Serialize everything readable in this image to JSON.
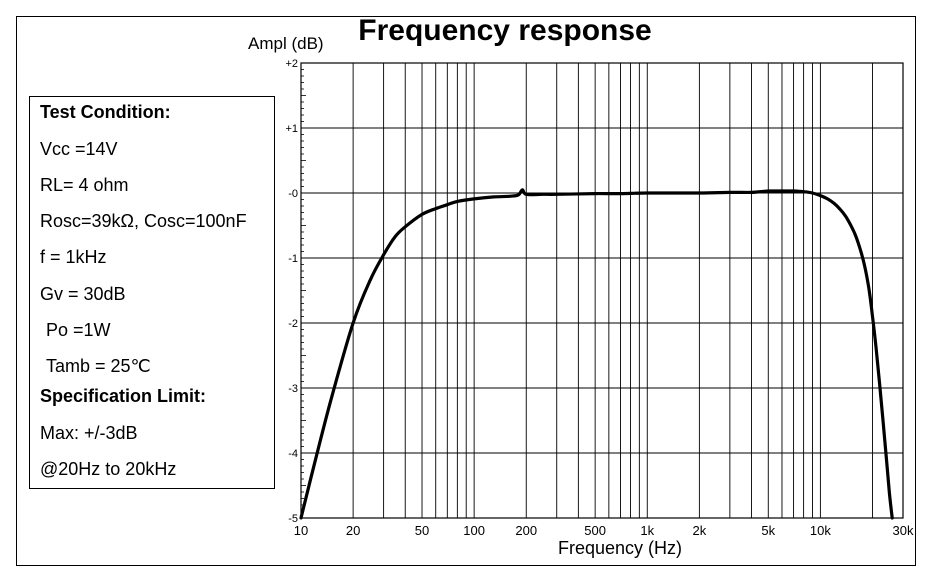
{
  "chart_data": {
    "type": "line",
    "title": "Frequency response",
    "xlabel": "Frequency (Hz)",
    "ylabel": "Ampl (dB)",
    "xscale": "log",
    "xlim": [
      10,
      30000
    ],
    "ylim": [
      -5,
      2
    ],
    "grid": true,
    "x_ticks": [
      {
        "value": 10,
        "label": "10"
      },
      {
        "value": 20,
        "label": "20"
      },
      {
        "value": 50,
        "label": "50"
      },
      {
        "value": 100,
        "label": "100"
      },
      {
        "value": 200,
        "label": "200"
      },
      {
        "value": 500,
        "label": "500"
      },
      {
        "value": 1000,
        "label": "1k"
      },
      {
        "value": 2000,
        "label": "2k"
      },
      {
        "value": 5000,
        "label": "5k"
      },
      {
        "value": 10000,
        "label": "10k"
      },
      {
        "value": 30000,
        "label": "30k"
      }
    ],
    "y_ticks": [
      {
        "value": 2,
        "label": "+2"
      },
      {
        "value": 1,
        "label": "+1"
      },
      {
        "value": 0,
        "label": "-0"
      },
      {
        "value": -1,
        "label": "-1"
      },
      {
        "value": -2,
        "label": "-2"
      },
      {
        "value": -3,
        "label": "-3"
      },
      {
        "value": -4,
        "label": "-4"
      },
      {
        "value": -5,
        "label": "-5"
      }
    ],
    "series": [
      {
        "x": [
          10,
          12,
          15,
          20,
          25,
          30,
          35,
          40,
          50,
          60,
          70,
          80,
          100,
          130,
          160,
          180,
          190,
          200,
          250,
          300,
          500,
          700,
          1000,
          2000,
          3000,
          4000,
          5000,
          6000,
          7000,
          8000,
          9000,
          10000,
          11000,
          12000,
          13000,
          14000,
          15000,
          16000,
          17000,
          18000,
          19000,
          20000,
          21000,
          22000,
          23000,
          24000,
          25000,
          26000
        ],
        "y": [
          -5.0,
          -4.15,
          -3.15,
          -2.0,
          -1.35,
          -0.95,
          -0.67,
          -0.52,
          -0.33,
          -0.24,
          -0.18,
          -0.13,
          -0.09,
          -0.06,
          -0.05,
          -0.03,
          0.05,
          -0.02,
          -0.02,
          -0.02,
          -0.01,
          -0.01,
          0.0,
          0.0,
          0.01,
          0.01,
          0.03,
          0.03,
          0.03,
          0.02,
          0.0,
          -0.04,
          -0.09,
          -0.16,
          -0.25,
          -0.36,
          -0.5,
          -0.66,
          -0.87,
          -1.12,
          -1.45,
          -1.9,
          -2.4,
          -2.95,
          -3.5,
          -4.05,
          -4.6,
          -5.0
        ]
      }
    ]
  },
  "conditions": {
    "heading": "Test Condition:",
    "vcc": "Vcc =14V",
    "rl": "RL= 4 ohm",
    "rosc": "Rosc=39kΩ, Cosc=100nF",
    "f": "f = 1kHz",
    "gv": "Gv = 30dB",
    "po": "Po =1W",
    "tamb": "Tamb = 25℃",
    "limit_heading": "Specification Limit:",
    "max": "Max: +/-3dB",
    "range": "@20Hz to 20kHz"
  }
}
